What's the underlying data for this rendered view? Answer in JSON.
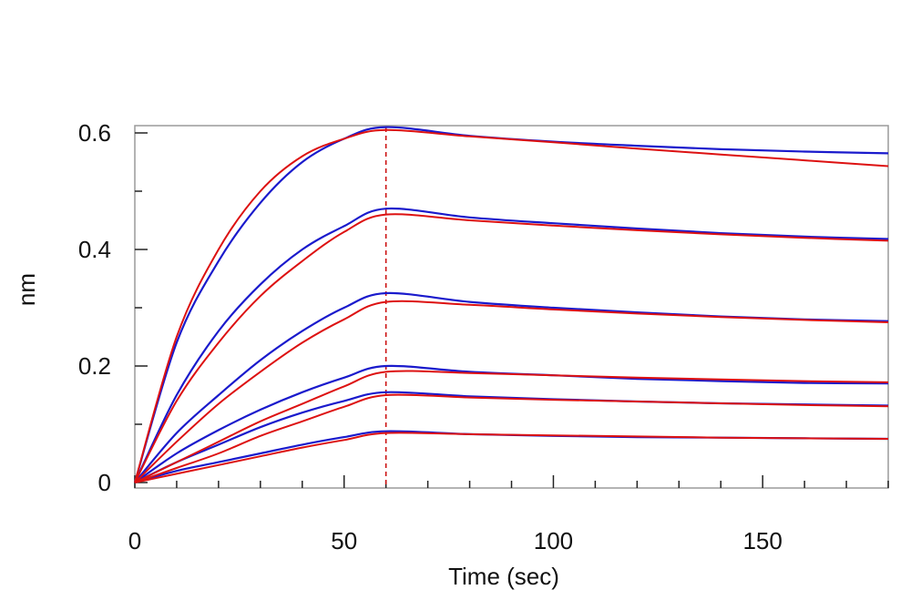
{
  "chart_data": {
    "type": "line",
    "title": "",
    "xlabel": "Time (sec)",
    "ylabel": "nm",
    "xlim": [
      0,
      180
    ],
    "ylim": [
      0,
      0.62
    ],
    "x_ticks": [
      0,
      50,
      100,
      150
    ],
    "y_ticks": [
      0,
      0.2,
      0.4,
      0.6
    ],
    "x_tick_labels": [
      "0",
      "50",
      "100",
      "150"
    ],
    "y_tick_labels": [
      "0",
      "0.2",
      "0.4",
      "0.6"
    ],
    "x_minor_step": 10,
    "y_minor_step": 0.1,
    "grid": false,
    "legend": "none",
    "vertical_marker_x": 60,
    "colors": {
      "observed": "#1a1acc",
      "fit": "#dd1111",
      "marker": "#cc1111"
    },
    "series": [
      {
        "kind": "observed",
        "x": [
          0,
          10,
          20,
          30,
          40,
          50,
          60,
          80,
          100,
          120,
          140,
          160,
          180
        ],
        "values": [
          0.0,
          0.24,
          0.38,
          0.48,
          0.55,
          0.59,
          0.61,
          0.595,
          0.585,
          0.578,
          0.572,
          0.568,
          0.565
        ]
      },
      {
        "kind": "fit",
        "x": [
          0,
          10,
          20,
          30,
          40,
          50,
          60,
          80,
          100,
          120,
          140,
          160,
          180
        ],
        "values": [
          0.0,
          0.25,
          0.4,
          0.5,
          0.56,
          0.59,
          0.605,
          0.594,
          0.584,
          0.573,
          0.563,
          0.553,
          0.543
        ]
      },
      {
        "kind": "observed",
        "x": [
          0,
          10,
          20,
          30,
          40,
          50,
          60,
          80,
          100,
          120,
          140,
          160,
          180
        ],
        "values": [
          0.0,
          0.15,
          0.26,
          0.34,
          0.4,
          0.44,
          0.47,
          0.455,
          0.445,
          0.436,
          0.428,
          0.422,
          0.418
        ]
      },
      {
        "kind": "fit",
        "x": [
          0,
          10,
          20,
          30,
          40,
          50,
          60,
          80,
          100,
          120,
          140,
          160,
          180
        ],
        "values": [
          0.0,
          0.14,
          0.24,
          0.32,
          0.38,
          0.43,
          0.46,
          0.45,
          0.441,
          0.433,
          0.426,
          0.42,
          0.415
        ]
      },
      {
        "kind": "observed",
        "x": [
          0,
          10,
          20,
          30,
          40,
          50,
          60,
          80,
          100,
          120,
          140,
          160,
          180
        ],
        "values": [
          0.0,
          0.085,
          0.15,
          0.21,
          0.26,
          0.3,
          0.325,
          0.31,
          0.3,
          0.292,
          0.285,
          0.28,
          0.277
        ]
      },
      {
        "kind": "fit",
        "x": [
          0,
          10,
          20,
          30,
          40,
          50,
          60,
          80,
          100,
          120,
          140,
          160,
          180
        ],
        "values": [
          0.0,
          0.07,
          0.135,
          0.19,
          0.24,
          0.28,
          0.31,
          0.305,
          0.297,
          0.29,
          0.284,
          0.279,
          0.275
        ]
      },
      {
        "kind": "observed",
        "x": [
          0,
          10,
          20,
          30,
          40,
          50,
          60,
          80,
          100,
          120,
          140,
          160,
          180
        ],
        "values": [
          0.0,
          0.05,
          0.09,
          0.125,
          0.155,
          0.18,
          0.2,
          0.19,
          0.184,
          0.178,
          0.174,
          0.171,
          0.17
        ]
      },
      {
        "kind": "fit",
        "x": [
          0,
          10,
          20,
          30,
          40,
          50,
          60,
          80,
          100,
          120,
          140,
          160,
          180
        ],
        "values": [
          0.0,
          0.035,
          0.07,
          0.105,
          0.135,
          0.165,
          0.19,
          0.188,
          0.184,
          0.18,
          0.177,
          0.174,
          0.172
        ]
      },
      {
        "kind": "observed",
        "x": [
          0,
          10,
          20,
          30,
          40,
          50,
          60,
          80,
          100,
          120,
          140,
          160,
          180
        ],
        "values": [
          0.0,
          0.035,
          0.065,
          0.095,
          0.12,
          0.14,
          0.155,
          0.148,
          0.143,
          0.139,
          0.136,
          0.134,
          0.132
        ]
      },
      {
        "kind": "fit",
        "x": [
          0,
          10,
          20,
          30,
          40,
          50,
          60,
          80,
          100,
          120,
          140,
          160,
          180
        ],
        "values": [
          0.0,
          0.025,
          0.05,
          0.08,
          0.105,
          0.13,
          0.15,
          0.146,
          0.142,
          0.139,
          0.136,
          0.133,
          0.131
        ]
      },
      {
        "kind": "observed",
        "x": [
          0,
          10,
          20,
          30,
          40,
          50,
          60,
          80,
          100,
          120,
          140,
          160,
          180
        ],
        "values": [
          0.0,
          0.02,
          0.035,
          0.05,
          0.065,
          0.078,
          0.088,
          0.083,
          0.08,
          0.078,
          0.077,
          0.076,
          0.075
        ]
      },
      {
        "kind": "fit",
        "x": [
          0,
          10,
          20,
          30,
          40,
          50,
          60,
          80,
          100,
          120,
          140,
          160,
          180
        ],
        "values": [
          0.0,
          0.015,
          0.03,
          0.045,
          0.06,
          0.073,
          0.085,
          0.083,
          0.081,
          0.079,
          0.077,
          0.076,
          0.075
        ]
      }
    ]
  }
}
